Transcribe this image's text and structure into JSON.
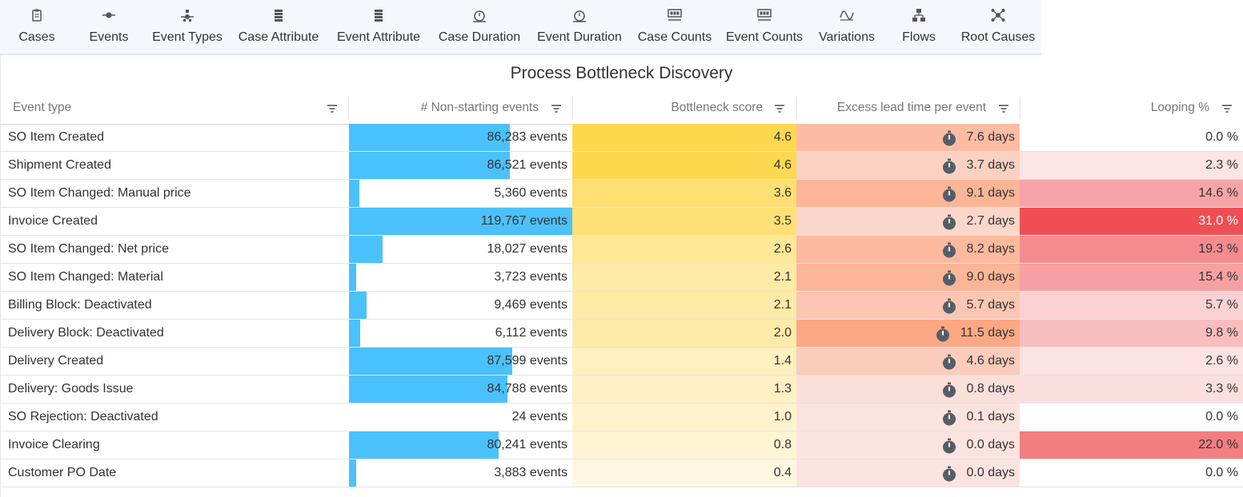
{
  "toolbar": {
    "items": [
      {
        "label": "Cases",
        "icon": "clipboard-icon"
      },
      {
        "label": "Events",
        "icon": "event-node-icon"
      },
      {
        "label": "Event Types",
        "icon": "event-types-icon"
      },
      {
        "label": "Case Attribute",
        "icon": "database-icon"
      },
      {
        "label": "Event Attribute",
        "icon": "database-icon"
      },
      {
        "label": "Case Duration",
        "icon": "stopwatch-icon"
      },
      {
        "label": "Event Duration",
        "icon": "stopwatch-icon"
      },
      {
        "label": "Case Counts",
        "icon": "counter-icon"
      },
      {
        "label": "Event Counts",
        "icon": "counter-icon"
      },
      {
        "label": "Variations",
        "icon": "variations-icon"
      },
      {
        "label": "Flows",
        "icon": "flows-icon"
      },
      {
        "label": "Root Causes",
        "icon": "root-causes-icon"
      }
    ]
  },
  "page": {
    "title": "Process Bottleneck Discovery"
  },
  "table": {
    "headers": {
      "event_type": "Event type",
      "non_starting": "# Non-starting events",
      "bottleneck": "Bottleneck score",
      "excess_lead": "Excess lead time per event",
      "looping": "Looping %"
    },
    "colors": {
      "bar": "#4bc1fb",
      "score_high": "#fdd84f",
      "lead_high": "#fca884",
      "loop_high": "#ee4f54"
    },
    "rows": [
      {
        "name": "SO Item Created",
        "events": "86,283 events",
        "bar_fraction": 0.72,
        "score": "4.6",
        "lead": "7.6 days",
        "loop": "0.0 %"
      },
      {
        "name": "Shipment Created",
        "events": "86,521 events",
        "bar_fraction": 0.722,
        "score": "4.6",
        "lead": "3.7 days",
        "loop": "2.3 %"
      },
      {
        "name": "SO Item Changed: Manual price",
        "events": "5,360 events",
        "bar_fraction": 0.045,
        "score": "3.6",
        "lead": "9.1 days",
        "loop": "14.6 %"
      },
      {
        "name": "Invoice Created",
        "events": "119,767 events",
        "bar_fraction": 1.0,
        "score": "3.5",
        "lead": "2.7 days",
        "loop": "31.0 %"
      },
      {
        "name": "SO Item Changed: Net price",
        "events": "18,027 events",
        "bar_fraction": 0.151,
        "score": "2.6",
        "lead": "8.2 days",
        "loop": "19.3 %"
      },
      {
        "name": "SO Item Changed: Material",
        "events": "3,723 events",
        "bar_fraction": 0.031,
        "score": "2.1",
        "lead": "9.0 days",
        "loop": "15.4 %"
      },
      {
        "name": "Billing Block: Deactivated",
        "events": "9,469 events",
        "bar_fraction": 0.079,
        "score": "2.1",
        "lead": "5.7 days",
        "loop": "5.7 %"
      },
      {
        "name": "Delivery Block: Deactivated",
        "events": "6,112 events",
        "bar_fraction": 0.051,
        "score": "2.0",
        "lead": "11.5 days",
        "loop": "9.8 %"
      },
      {
        "name": "Delivery Created",
        "events": "87,599 events",
        "bar_fraction": 0.731,
        "score": "1.4",
        "lead": "4.6 days",
        "loop": "2.6 %"
      },
      {
        "name": "Delivery: Goods Issue",
        "events": "84,788 events",
        "bar_fraction": 0.708,
        "score": "1.3",
        "lead": "0.8 days",
        "loop": "3.3 %"
      },
      {
        "name": "SO Rejection: Deactivated",
        "events": "24 events",
        "bar_fraction": 0.0002,
        "score": "1.0",
        "lead": "0.1 days",
        "loop": "0.0 %"
      },
      {
        "name": "Invoice Clearing",
        "events": "80,241 events",
        "bar_fraction": 0.67,
        "score": "0.8",
        "lead": "0.0 days",
        "loop": "22.0 %"
      },
      {
        "name": "Customer PO Date",
        "events": "3,883 events",
        "bar_fraction": 0.032,
        "score": "0.4",
        "lead": "0.0 days",
        "loop": "0.0 %"
      }
    ]
  }
}
